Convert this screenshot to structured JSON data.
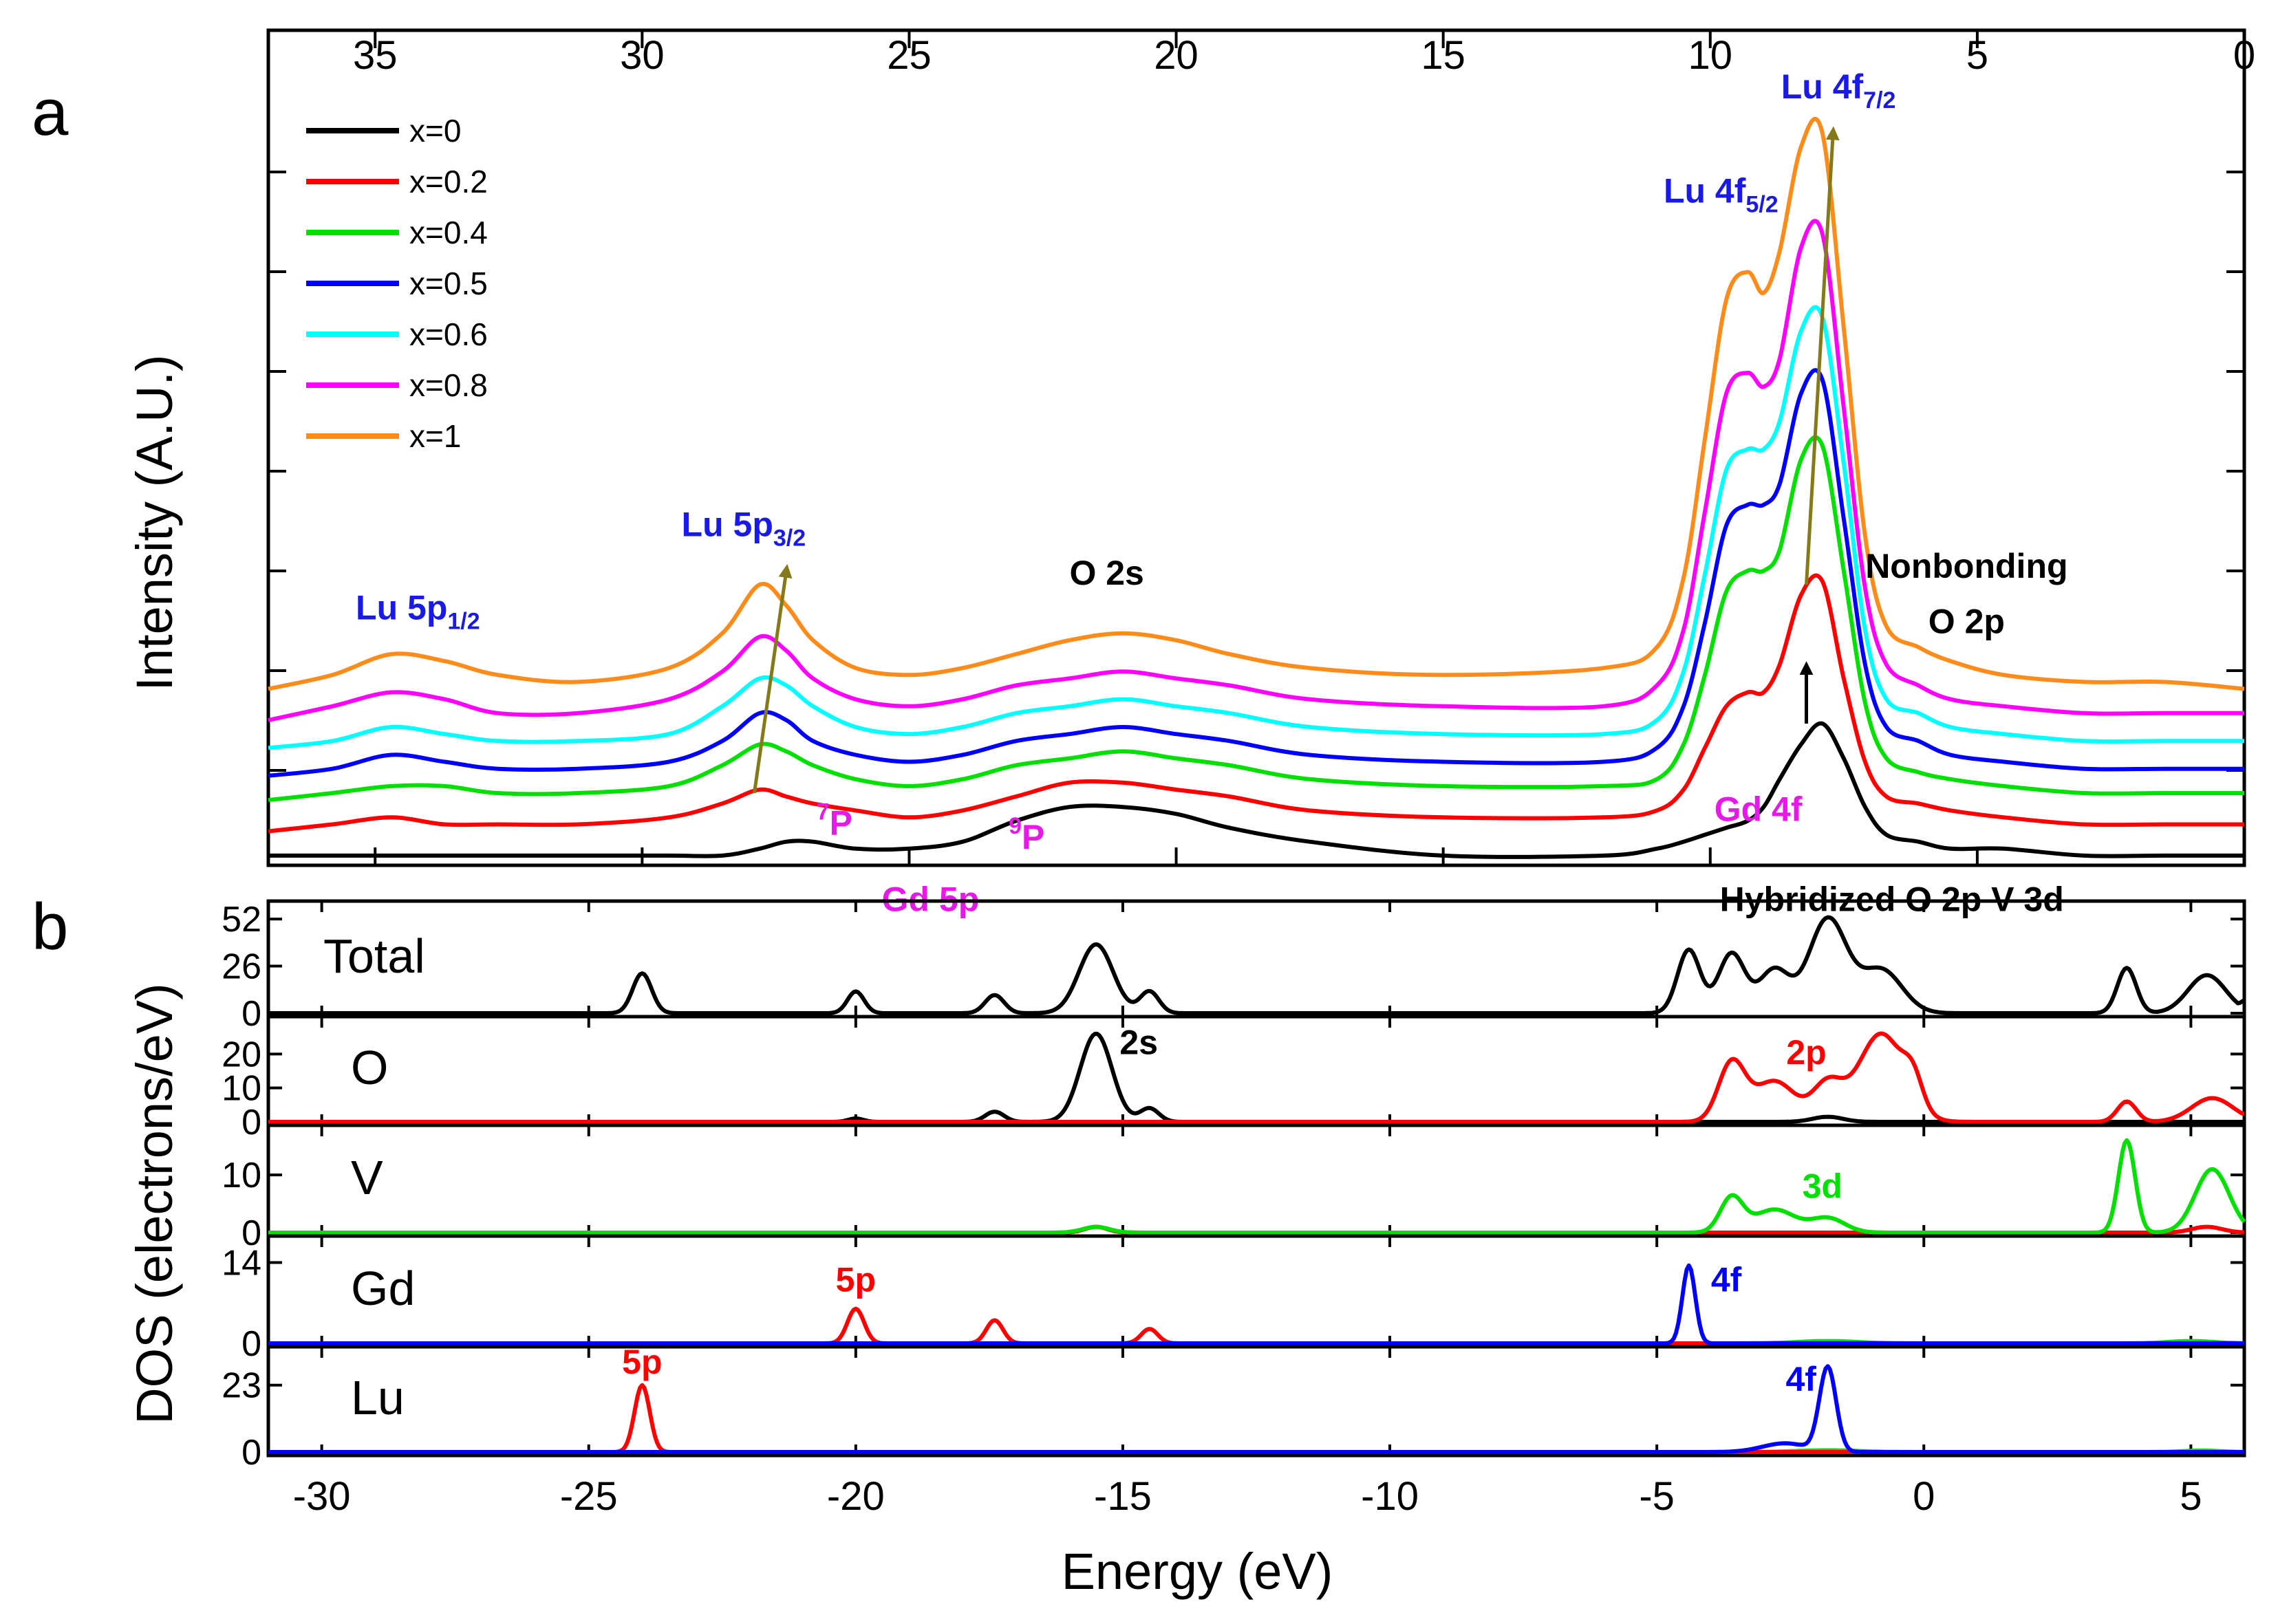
{
  "chart_data": [
    {
      "panel": "a",
      "type": "line",
      "ylabel": "Intensity (A.U.)",
      "x_top_ticks": [
        "35",
        "30",
        "25",
        "20",
        "15",
        "10",
        "5",
        "0"
      ],
      "x_top_tick_values": [
        35,
        30,
        25,
        20,
        15,
        10,
        5,
        0
      ],
      "xlim": [
        37,
        0
      ],
      "ylim": [
        0,
        1
      ],
      "legend_position": "top-left",
      "x_sample_grid": [
        37,
        35.8,
        34.7,
        33.7,
        32.7,
        31.2,
        29.5,
        28.5,
        27.8,
        27.3,
        26.8,
        26,
        25,
        24,
        23,
        22,
        21,
        20,
        19,
        17.5,
        15,
        12,
        11,
        10.5,
        10.1,
        9.7,
        9.3,
        9,
        8.7,
        8.3,
        7.9,
        7.5,
        7.1,
        6.7,
        6.1,
        5.5,
        4.5,
        3,
        1.5,
        0
      ],
      "series": [
        {
          "name": "x=0",
          "color": "#000000",
          "offset": 0.0,
          "values": [
            0.01,
            0.01,
            0.01,
            0.01,
            0.01,
            0.01,
            0.01,
            0.01,
            0.02,
            0.03,
            0.03,
            0.02,
            0.02,
            0.03,
            0.06,
            0.08,
            0.08,
            0.07,
            0.05,
            0.03,
            0.01,
            0.01,
            0.02,
            0.03,
            0.04,
            0.05,
            0.06,
            0.08,
            0.12,
            0.17,
            0.2,
            0.15,
            0.08,
            0.04,
            0.03,
            0.02,
            0.02,
            0.01,
            0.01,
            0.01
          ]
        },
        {
          "name": "x=0.2",
          "color": "#ff0000",
          "offset": 0.045,
          "values": [
            0,
            0.01,
            0.02,
            0.01,
            0.01,
            0.01,
            0.02,
            0.04,
            0.06,
            0.05,
            0.04,
            0.03,
            0.02,
            0.03,
            0.05,
            0.07,
            0.07,
            0.06,
            0.05,
            0.03,
            0.02,
            0.02,
            0.03,
            0.06,
            0.12,
            0.18,
            0.2,
            0.2,
            0.24,
            0.34,
            0.36,
            0.22,
            0.1,
            0.05,
            0.04,
            0.03,
            0.02,
            0.01,
            0.01,
            0.01
          ]
        },
        {
          "name": "x=0.4",
          "color": "#00e000",
          "offset": 0.09,
          "values": [
            0,
            0.01,
            0.02,
            0.02,
            0.01,
            0.01,
            0.02,
            0.05,
            0.08,
            0.07,
            0.05,
            0.03,
            0.02,
            0.03,
            0.05,
            0.06,
            0.07,
            0.06,
            0.05,
            0.03,
            0.02,
            0.02,
            0.03,
            0.08,
            0.18,
            0.3,
            0.33,
            0.33,
            0.36,
            0.49,
            0.51,
            0.33,
            0.14,
            0.06,
            0.04,
            0.03,
            0.02,
            0.01,
            0.01,
            0.01
          ]
        },
        {
          "name": "x=0.5",
          "color": "#0000ff",
          "offset": 0.125,
          "values": [
            0,
            0.01,
            0.03,
            0.02,
            0.01,
            0.01,
            0.02,
            0.05,
            0.09,
            0.08,
            0.05,
            0.03,
            0.02,
            0.03,
            0.05,
            0.06,
            0.07,
            0.06,
            0.05,
            0.03,
            0.02,
            0.02,
            0.04,
            0.1,
            0.22,
            0.36,
            0.39,
            0.39,
            0.42,
            0.55,
            0.57,
            0.37,
            0.16,
            0.07,
            0.05,
            0.03,
            0.02,
            0.01,
            0.01,
            0.01
          ]
        },
        {
          "name": "x=0.6",
          "color": "#00ffff",
          "offset": 0.165,
          "values": [
            0,
            0.01,
            0.03,
            0.02,
            0.01,
            0.01,
            0.02,
            0.06,
            0.1,
            0.09,
            0.06,
            0.03,
            0.02,
            0.03,
            0.05,
            0.06,
            0.07,
            0.06,
            0.05,
            0.03,
            0.02,
            0.02,
            0.04,
            0.11,
            0.25,
            0.4,
            0.43,
            0.43,
            0.47,
            0.6,
            0.62,
            0.41,
            0.17,
            0.07,
            0.05,
            0.03,
            0.02,
            0.01,
            0.01,
            0.01
          ]
        },
        {
          "name": "x=0.8",
          "color": "#ff00ff",
          "offset": 0.205,
          "values": [
            0,
            0.02,
            0.04,
            0.03,
            0.01,
            0.01,
            0.03,
            0.07,
            0.12,
            0.1,
            0.06,
            0.03,
            0.02,
            0.03,
            0.05,
            0.06,
            0.07,
            0.06,
            0.05,
            0.03,
            0.02,
            0.02,
            0.05,
            0.13,
            0.3,
            0.47,
            0.5,
            0.48,
            0.52,
            0.68,
            0.7,
            0.45,
            0.19,
            0.08,
            0.05,
            0.03,
            0.02,
            0.01,
            0.01,
            0.01
          ]
        },
        {
          "name": "x=1",
          "color": "#ff8c1a",
          "offset": 0.25,
          "values": [
            0,
            0.02,
            0.05,
            0.04,
            0.02,
            0.01,
            0.03,
            0.08,
            0.15,
            0.12,
            0.07,
            0.03,
            0.02,
            0.03,
            0.05,
            0.07,
            0.08,
            0.07,
            0.05,
            0.03,
            0.02,
            0.03,
            0.06,
            0.16,
            0.36,
            0.56,
            0.6,
            0.57,
            0.63,
            0.78,
            0.8,
            0.52,
            0.22,
            0.09,
            0.06,
            0.04,
            0.02,
            0.01,
            0.01,
            0.0
          ]
        }
      ],
      "arrows": [
        {
          "from": [
            27.9,
            0.1
          ],
          "to": [
            27.3,
            0.42
          ],
          "color": "#857a1a"
        },
        {
          "from": [
            8.2,
            0.4
          ],
          "to": [
            7.7,
            1.05
          ],
          "color": "#857a1a"
        },
        {
          "from": [
            8.2,
            0.2
          ],
          "to": [
            8.2,
            0.28
          ],
          "color": "#000000"
        }
      ],
      "annotations": [
        {
          "id": "lu5p12",
          "main": "Lu 5p",
          "sub": "1/2",
          "color": "#1a1ae6",
          "at": [
            34.2,
            0.35
          ]
        },
        {
          "id": "lu5p32",
          "main": "Lu 5p",
          "sub": "3/2",
          "color": "#1a1ae6",
          "at": [
            28.1,
            0.47
          ]
        },
        {
          "id": "o2s",
          "main": "O 2s",
          "color": "#000000",
          "at": [
            21.3,
            0.4
          ]
        },
        {
          "id": "lu4f52",
          "main": "Lu 4f",
          "sub": "5/2",
          "color": "#1a1ae6",
          "at": [
            9.8,
            0.95
          ]
        },
        {
          "id": "lu4f72",
          "main": "Lu 4f",
          "sub": "7/2",
          "color": "#1a1ae6",
          "at": [
            7.6,
            1.1
          ]
        },
        {
          "id": "nonbond1",
          "main": "Nonbonding",
          "color": "#000000",
          "at": [
            5.2,
            0.41
          ]
        },
        {
          "id": "nonbond2",
          "main": "O 2p",
          "color": "#000000",
          "at": [
            5.2,
            0.33
          ]
        },
        {
          "id": "gd4f",
          "main": "Gd 4f",
          "color": "#e61ae6",
          "at": [
            9.1,
            0.06
          ]
        },
        {
          "id": "p7",
          "sup": "7",
          "main": "P",
          "color": "#e61ae6",
          "at": [
            26.4,
            0.04
          ]
        },
        {
          "id": "p9",
          "sup": "9",
          "main": "P",
          "color": "#e61ae6",
          "at": [
            22.8,
            0.02
          ]
        },
        {
          "id": "gd5p",
          "main": "Gd 5p",
          "color": "#e61ae6",
          "at": [
            24.6,
            -0.07
          ]
        },
        {
          "id": "hybrid",
          "main": "Hybridized O 2p V 3d",
          "color": "#000000",
          "at": [
            6.6,
            -0.07
          ]
        }
      ]
    },
    {
      "panel": "b",
      "type": "line",
      "xlabel": "Energy (eV)",
      "ylabel": "DOS (electrons/eV)",
      "xlim": [
        -31,
        6
      ],
      "x_ticks": [
        "-30",
        "-25",
        "-20",
        "-15",
        "-10",
        "-5",
        "0",
        "5"
      ],
      "x_tick_values": [
        -30,
        -25,
        -20,
        -15,
        -10,
        -5,
        0,
        5
      ],
      "subplots": [
        {
          "name": "Total",
          "ylim": [
            0,
            60
          ],
          "y_ticks": [
            0,
            26,
            52
          ],
          "y_tick_labels": [
            "0",
            "26",
            "52"
          ],
          "series": [
            {
              "color": "#000000",
              "peaks": [
                [
                  -24,
                  22,
                  0.25
                ],
                [
                  -20,
                  12,
                  0.22
                ],
                [
                  -17.4,
                  10,
                  0.25
                ],
                [
                  -15.5,
                  38,
                  0.45
                ],
                [
                  -14.5,
                  12,
                  0.25
                ],
                [
                  -4.4,
                  35,
                  0.3
                ],
                [
                  -3.6,
                  33,
                  0.35
                ],
                [
                  -2.8,
                  24,
                  0.4
                ],
                [
                  -1.8,
                  52,
                  0.5
                ],
                [
                  -0.8,
                  24,
                  0.55
                ],
                [
                  3.8,
                  25,
                  0.25
                ],
                [
                  5.3,
                  21,
                  0.5
                ]
              ],
              "tail": [
                6,
                12
              ]
            }
          ],
          "labels": []
        },
        {
          "name": "O",
          "ylim": [
            0,
            30
          ],
          "y_ticks": [
            0,
            10,
            20
          ],
          "y_tick_labels": [
            "0",
            "10",
            "20"
          ],
          "series": [
            {
              "color": "#000000",
              "peaks": [
                [
                  -17.4,
                  3,
                  0.25
                ],
                [
                  -15.5,
                  26,
                  0.42
                ],
                [
                  -14.5,
                  4,
                  0.25
                ],
                [
                  -20,
                  1,
                  0.2
                ],
                [
                  -1.8,
                  1.5,
                  0.4
                ]
              ]
            },
            {
              "color": "#ff0000",
              "peaks": [
                [
                  -3.6,
                  17,
                  0.35
                ],
                [
                  -2.8,
                  12,
                  0.55
                ],
                [
                  -1.8,
                  11,
                  0.4
                ],
                [
                  -0.8,
                  26,
                  0.6
                ],
                [
                  -0.2,
                  8,
                  0.25
                ],
                [
                  3.8,
                  6,
                  0.25
                ],
                [
                  5.4,
                  7,
                  0.55
                ]
              ],
              "tail": [
                6,
                4
              ]
            }
          ],
          "labels": [
            {
              "text": "2s",
              "color": "#000000",
              "at": [
                -14.7,
                20
              ]
            },
            {
              "text": "2p",
              "color": "#ff0000",
              "at": [
                -2.2,
                17
              ]
            }
          ]
        },
        {
          "name": "V",
          "ylim": [
            0,
            18
          ],
          "y_ticks": [
            0,
            10
          ],
          "y_tick_labels": [
            "0",
            "10"
          ],
          "series": [
            {
              "color": "#ff0000",
              "peaks": [
                [
                  -15.5,
                  1,
                  0.3
                ],
                [
                  5.3,
                  1,
                  0.4
                ]
              ]
            },
            {
              "color": "#00e000",
              "peaks": [
                [
                  -3.6,
                  6,
                  0.3
                ],
                [
                  -2.8,
                  4,
                  0.55
                ],
                [
                  -1.8,
                  2.5,
                  0.45
                ],
                [
                  -15.5,
                  1,
                  0.35
                ],
                [
                  3.8,
                  16,
                  0.22
                ],
                [
                  5.4,
                  11,
                  0.45
                ]
              ],
              "tail": [
                6,
                3
              ]
            }
          ],
          "labels": [
            {
              "text": "3d",
              "color": "#00e000",
              "at": [
                -1.9,
                6
              ]
            }
          ]
        },
        {
          "name": "Gd",
          "ylim": [
            0,
            18
          ],
          "y_ticks": [
            0,
            14
          ],
          "y_tick_labels": [
            "0",
            "14"
          ],
          "series": [
            {
              "color": "#00e000",
              "peaks": [
                [
                  -1.8,
                  0.4,
                  0.8
                ],
                [
                  5,
                  0.4,
                  0.6
                ]
              ]
            },
            {
              "color": "#ff0000",
              "peaks": [
                [
                  -20,
                  6,
                  0.22
                ],
                [
                  -17.4,
                  4,
                  0.22
                ],
                [
                  -14.5,
                  2.5,
                  0.22
                ]
              ]
            },
            {
              "color": "#0000ff",
              "peaks": [
                [
                  -4.4,
                  13.5,
                  0.17
                ]
              ]
            }
          ],
          "labels": [
            {
              "text": "5p",
              "color": "#ff0000",
              "at": [
                -20,
                9
              ]
            },
            {
              "text": "4f",
              "color": "#0000ff",
              "at": [
                -3.7,
                9
              ]
            }
          ]
        },
        {
          "name": "Lu",
          "ylim": [
            0,
            35
          ],
          "y_ticks": [
            0,
            23
          ],
          "y_tick_labels": [
            "0",
            "23"
          ],
          "series": [
            {
              "color": "#00e000",
              "peaks": [
                [
                  -1.8,
                  0.6,
                  0.8
                ],
                [
                  5.2,
                  0.5,
                  0.5
                ]
              ]
            },
            {
              "color": "#ff0000",
              "peaks": [
                [
                  -24,
                  23,
                  0.2
                ]
              ]
            },
            {
              "color": "#0000ff",
              "peaks": [
                [
                  -1.8,
                  29,
                  0.22
                ],
                [
                  -2.6,
                  3,
                  0.6
                ]
              ]
            }
          ],
          "labels": [
            {
              "text": "5p",
              "color": "#ff0000",
              "at": [
                -24,
                27
              ]
            },
            {
              "text": "4f",
              "color": "#0000ff",
              "at": [
                -2.3,
                21
              ]
            }
          ]
        }
      ]
    }
  ],
  "panel_a_label": "a",
  "panel_b_label": "b"
}
